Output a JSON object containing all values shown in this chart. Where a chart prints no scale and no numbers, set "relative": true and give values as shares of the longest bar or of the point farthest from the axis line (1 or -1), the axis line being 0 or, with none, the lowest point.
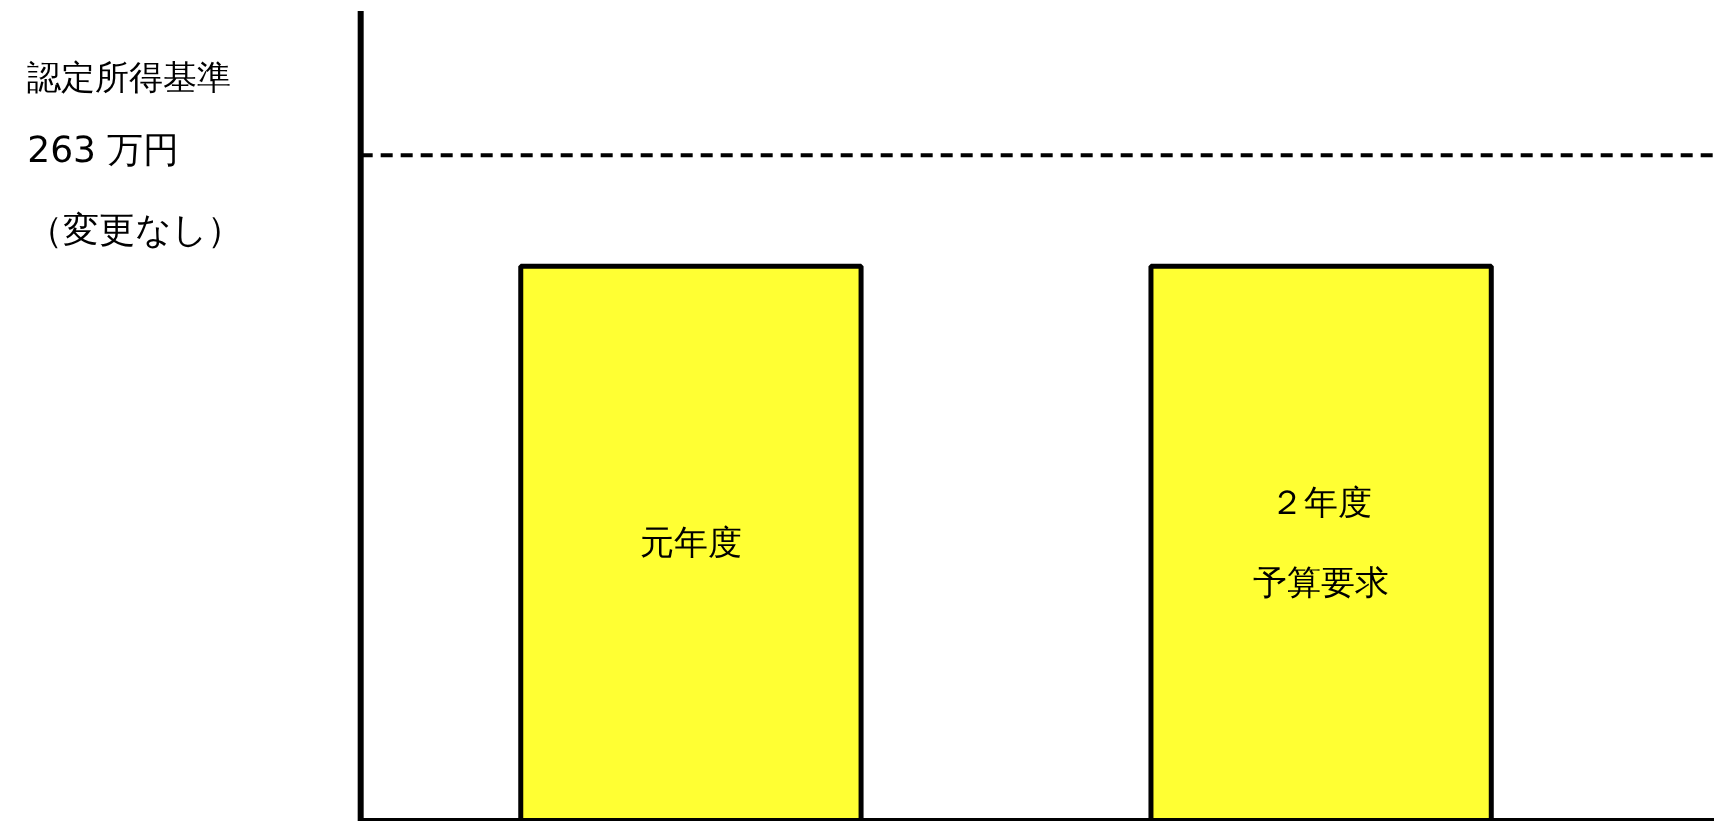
{
  "chart_data": {
    "type": "bar",
    "relative": true,
    "annotations": [
      "認定所得基準"
    ],
    "categories": [
      "元年度",
      "２年度予算要求"
    ],
    "values": [
      1,
      1
    ],
    "color": "#ffff33",
    "ref_lines": [
      {
        "axis": "y",
        "value": 1.2,
        "label": "263 万円（変更なし）",
        "color": "#000000",
        "line_style": "dashed"
      }
    ],
    "grid": false
  }
}
